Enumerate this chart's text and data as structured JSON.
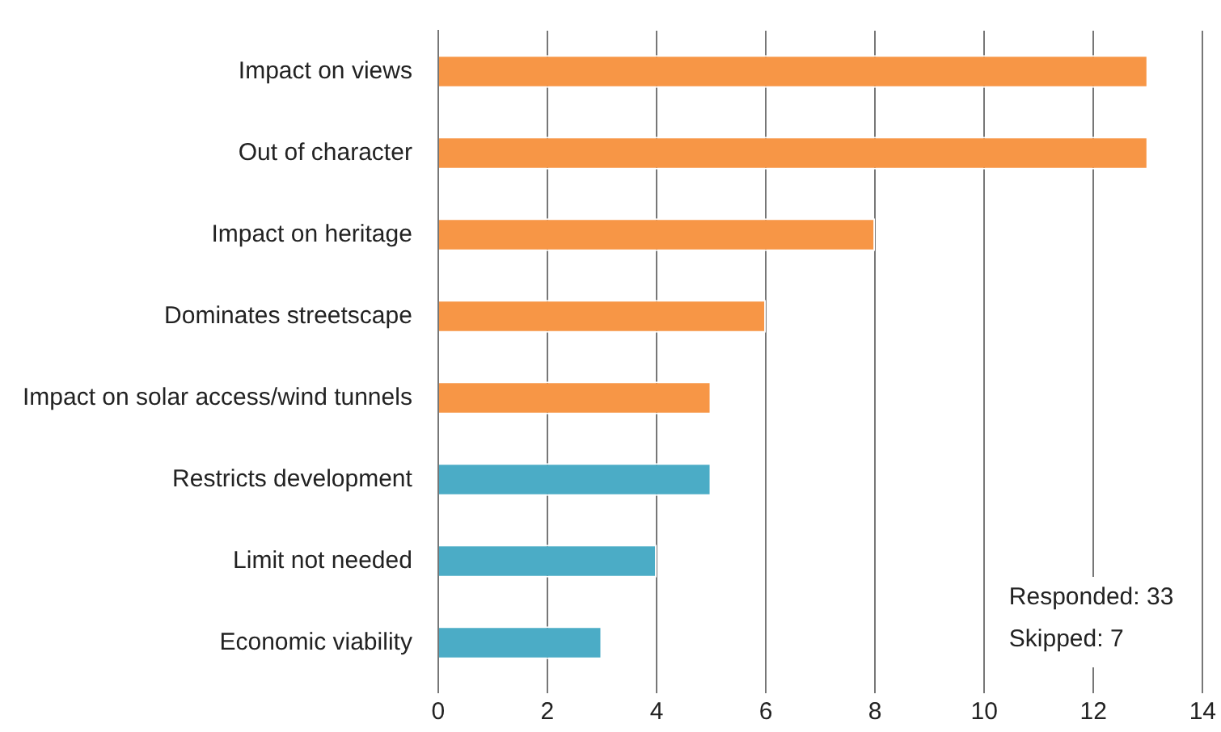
{
  "chart_data": {
    "type": "bar",
    "orientation": "horizontal",
    "categories": [
      "Impact on views",
      "Out of character",
      "Impact on heritage",
      "Dominates streetscape",
      "Impact on solar access/wind tunnels",
      "Restricts development",
      "Limit not needed",
      "Economic viability"
    ],
    "values": [
      13,
      13,
      8,
      6,
      5,
      5,
      4,
      3
    ],
    "colors": [
      "#f79646",
      "#f79646",
      "#f79646",
      "#f79646",
      "#f79646",
      "#4bacc6",
      "#4bacc6",
      "#4bacc6"
    ],
    "xlim": [
      0,
      14
    ],
    "xticks": [
      0,
      2,
      4,
      6,
      8,
      10,
      12,
      14
    ],
    "grid": "x",
    "legend": false,
    "annotations": [
      "Responded: 33",
      "Skipped: 7"
    ]
  }
}
